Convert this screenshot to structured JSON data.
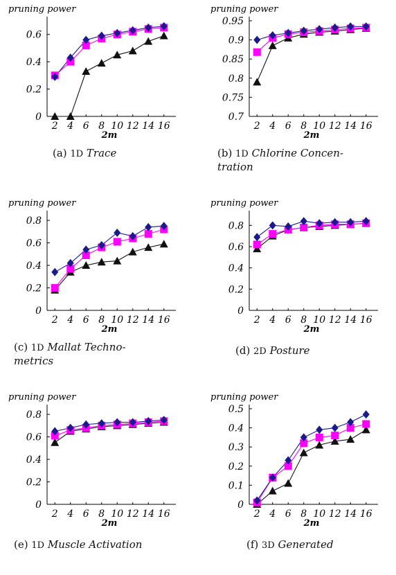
{
  "marker_colors": {
    "black": "#111111",
    "magenta": "#ff00ff",
    "navy": "#1a1a8c"
  },
  "chart_data": [
    {
      "type": "line",
      "ylabel": "pruning power",
      "xlabel": "2m",
      "x": [
        2,
        4,
        6,
        8,
        10,
        12,
        14,
        16
      ],
      "ylim": [
        0,
        0.7
      ],
      "yticks": [
        "0",
        "0.2",
        "0.4",
        "0.6"
      ],
      "yticks_values": [
        0,
        0.2,
        0.4,
        0.6
      ],
      "xticks": [
        "2",
        "4",
        "6",
        "8",
        "10",
        "12",
        "14",
        "16"
      ],
      "series": [
        {
          "marker": "triangle",
          "color": "#111111",
          "values": [
            0,
            0,
            0.33,
            0.39,
            0.45,
            0.48,
            0.55,
            0.59
          ]
        },
        {
          "marker": "square",
          "color": "#ff00ff",
          "values": [
            0.3,
            0.4,
            0.52,
            0.57,
            0.6,
            0.62,
            0.64,
            0.65
          ]
        },
        {
          "marker": "diamond",
          "color": "#1a1a8c",
          "values": [
            0.29,
            0.43,
            0.56,
            0.59,
            0.61,
            0.63,
            0.65,
            0.66
          ]
        }
      ],
      "caption": {
        "label": "(a)",
        "num": "1D",
        "name": "Trace",
        "line2": ""
      }
    },
    {
      "type": "line",
      "ylabel": "pruning power",
      "xlabel": "2m",
      "x": [
        2,
        4,
        6,
        8,
        10,
        12,
        14,
        16
      ],
      "ylim": [
        0.7,
        0.95
      ],
      "yticks": [
        "0.7",
        "0.75",
        "0.8",
        "0.85",
        "0.9",
        "0.95"
      ],
      "yticks_values": [
        0.7,
        0.75,
        0.8,
        0.85,
        0.9,
        0.95
      ],
      "xticks": [
        "2",
        "4",
        "6",
        "8",
        "10",
        "12",
        "14",
        "16"
      ],
      "series": [
        {
          "marker": "triangle",
          "color": "#111111",
          "values": [
            0.79,
            0.885,
            0.905,
            0.915,
            0.92,
            0.923,
            0.927,
            0.93
          ]
        },
        {
          "marker": "square",
          "color": "#ff00ff",
          "values": [
            0.868,
            0.905,
            0.915,
            0.92,
            0.923,
            0.927,
            0.93,
            0.932
          ]
        },
        {
          "marker": "diamond",
          "color": "#1a1a8c",
          "values": [
            0.9,
            0.912,
            0.918,
            0.924,
            0.928,
            0.932,
            0.935,
            0.935
          ]
        }
      ],
      "caption": {
        "label": "(b)",
        "num": "1D",
        "name": "Chlorine Concen-",
        "line2": "tration"
      }
    },
    {
      "type": "line",
      "ylabel": "pruning power",
      "xlabel": "2m",
      "x": [
        2,
        4,
        6,
        8,
        10,
        12,
        14,
        16
      ],
      "ylim": [
        0,
        0.85
      ],
      "yticks": [
        "0",
        "0.2",
        "0.4",
        "0.6",
        "0.8"
      ],
      "yticks_values": [
        0,
        0.2,
        0.4,
        0.6,
        0.8
      ],
      "xticks": [
        "2",
        "4",
        "6",
        "8",
        "10",
        "12",
        "14",
        "16"
      ],
      "series": [
        {
          "marker": "triangle",
          "color": "#111111",
          "values": [
            0.18,
            0.34,
            0.4,
            0.43,
            0.44,
            0.52,
            0.56,
            0.59
          ]
        },
        {
          "marker": "square",
          "color": "#ff00ff",
          "values": [
            0.2,
            0.37,
            0.49,
            0.56,
            0.61,
            0.64,
            0.68,
            0.72
          ]
        },
        {
          "marker": "diamond",
          "color": "#1a1a8c",
          "values": [
            0.34,
            0.42,
            0.54,
            0.58,
            0.69,
            0.66,
            0.74,
            0.75
          ]
        }
      ],
      "caption": {
        "label": "(c)",
        "num": "1D",
        "name": "Mallat Techno-",
        "line2": "metrics"
      }
    },
    {
      "type": "line",
      "ylabel": "pruning power",
      "xlabel": "2m",
      "x": [
        2,
        4,
        6,
        8,
        10,
        12,
        14,
        16
      ],
      "ylim": [
        0,
        0.9
      ],
      "yticks": [
        "0",
        "0.2",
        "0.4",
        "0.6",
        "0.8"
      ],
      "yticks_values": [
        0,
        0.2,
        0.4,
        0.6,
        0.8
      ],
      "xticks": [
        "2",
        "4",
        "6",
        "8",
        "10",
        "12",
        "14",
        "16"
      ],
      "series": [
        {
          "marker": "triangle",
          "color": "#111111",
          "values": [
            0.58,
            0.7,
            0.76,
            0.78,
            0.79,
            0.8,
            0.81,
            0.82
          ]
        },
        {
          "marker": "square",
          "color": "#ff00ff",
          "values": [
            0.62,
            0.72,
            0.76,
            0.78,
            0.8,
            0.81,
            0.81,
            0.82
          ]
        },
        {
          "marker": "diamond",
          "color": "#1a1a8c",
          "values": [
            0.69,
            0.8,
            0.79,
            0.84,
            0.82,
            0.83,
            0.83,
            0.84
          ]
        }
      ],
      "caption": {
        "label": "(d)",
        "num": "2D",
        "name": "Posture",
        "line2": ""
      }
    },
    {
      "type": "line",
      "ylabel": "pruning power",
      "xlabel": "2m",
      "x": [
        2,
        4,
        6,
        8,
        10,
        12,
        14,
        16
      ],
      "ylim": [
        0,
        0.85
      ],
      "yticks": [
        "0",
        "0.2",
        "0.4",
        "0.6",
        "0.8"
      ],
      "yticks_values": [
        0,
        0.2,
        0.4,
        0.6,
        0.8
      ],
      "xticks": [
        "2",
        "4",
        "6",
        "8",
        "10",
        "12",
        "14",
        "16"
      ],
      "series": [
        {
          "marker": "triangle",
          "color": "#111111",
          "values": [
            0.55,
            0.65,
            0.67,
            0.69,
            0.7,
            0.71,
            0.72,
            0.73
          ]
        },
        {
          "marker": "square",
          "color": "#ff00ff",
          "values": [
            0.61,
            0.66,
            0.68,
            0.7,
            0.71,
            0.72,
            0.73,
            0.74
          ]
        },
        {
          "marker": "diamond",
          "color": "#1a1a8c",
          "values": [
            0.65,
            0.68,
            0.71,
            0.72,
            0.73,
            0.73,
            0.74,
            0.75
          ]
        }
      ],
      "caption": {
        "label": "(e)",
        "num": "1D",
        "name": "Muscle Activation",
        "line2": ""
      }
    },
    {
      "type": "line",
      "ylabel": "pruning power",
      "xlabel": "2m",
      "x": [
        2,
        4,
        6,
        8,
        10,
        12,
        14,
        16
      ],
      "ylim": [
        0,
        0.5
      ],
      "yticks": [
        "0",
        "0.1",
        "0.2",
        "0.3",
        "0.4",
        "0.5"
      ],
      "yticks_values": [
        0,
        0.1,
        0.2,
        0.3,
        0.4,
        0.5
      ],
      "xticks": [
        "2",
        "4",
        "6",
        "8",
        "10",
        "12",
        "14",
        "16"
      ],
      "series": [
        {
          "marker": "triangle",
          "color": "#111111",
          "values": [
            0.0,
            0.07,
            0.11,
            0.27,
            0.31,
            0.33,
            0.34,
            0.39
          ]
        },
        {
          "marker": "square",
          "color": "#ff00ff",
          "values": [
            0.01,
            0.14,
            0.2,
            0.32,
            0.35,
            0.36,
            0.4,
            0.42
          ]
        },
        {
          "marker": "diamond",
          "color": "#1a1a8c",
          "values": [
            0.02,
            0.14,
            0.23,
            0.35,
            0.39,
            0.4,
            0.43,
            0.47
          ]
        }
      ],
      "caption": {
        "label": "(f)",
        "num": "3D",
        "name": "Generated",
        "line2": ""
      }
    }
  ]
}
